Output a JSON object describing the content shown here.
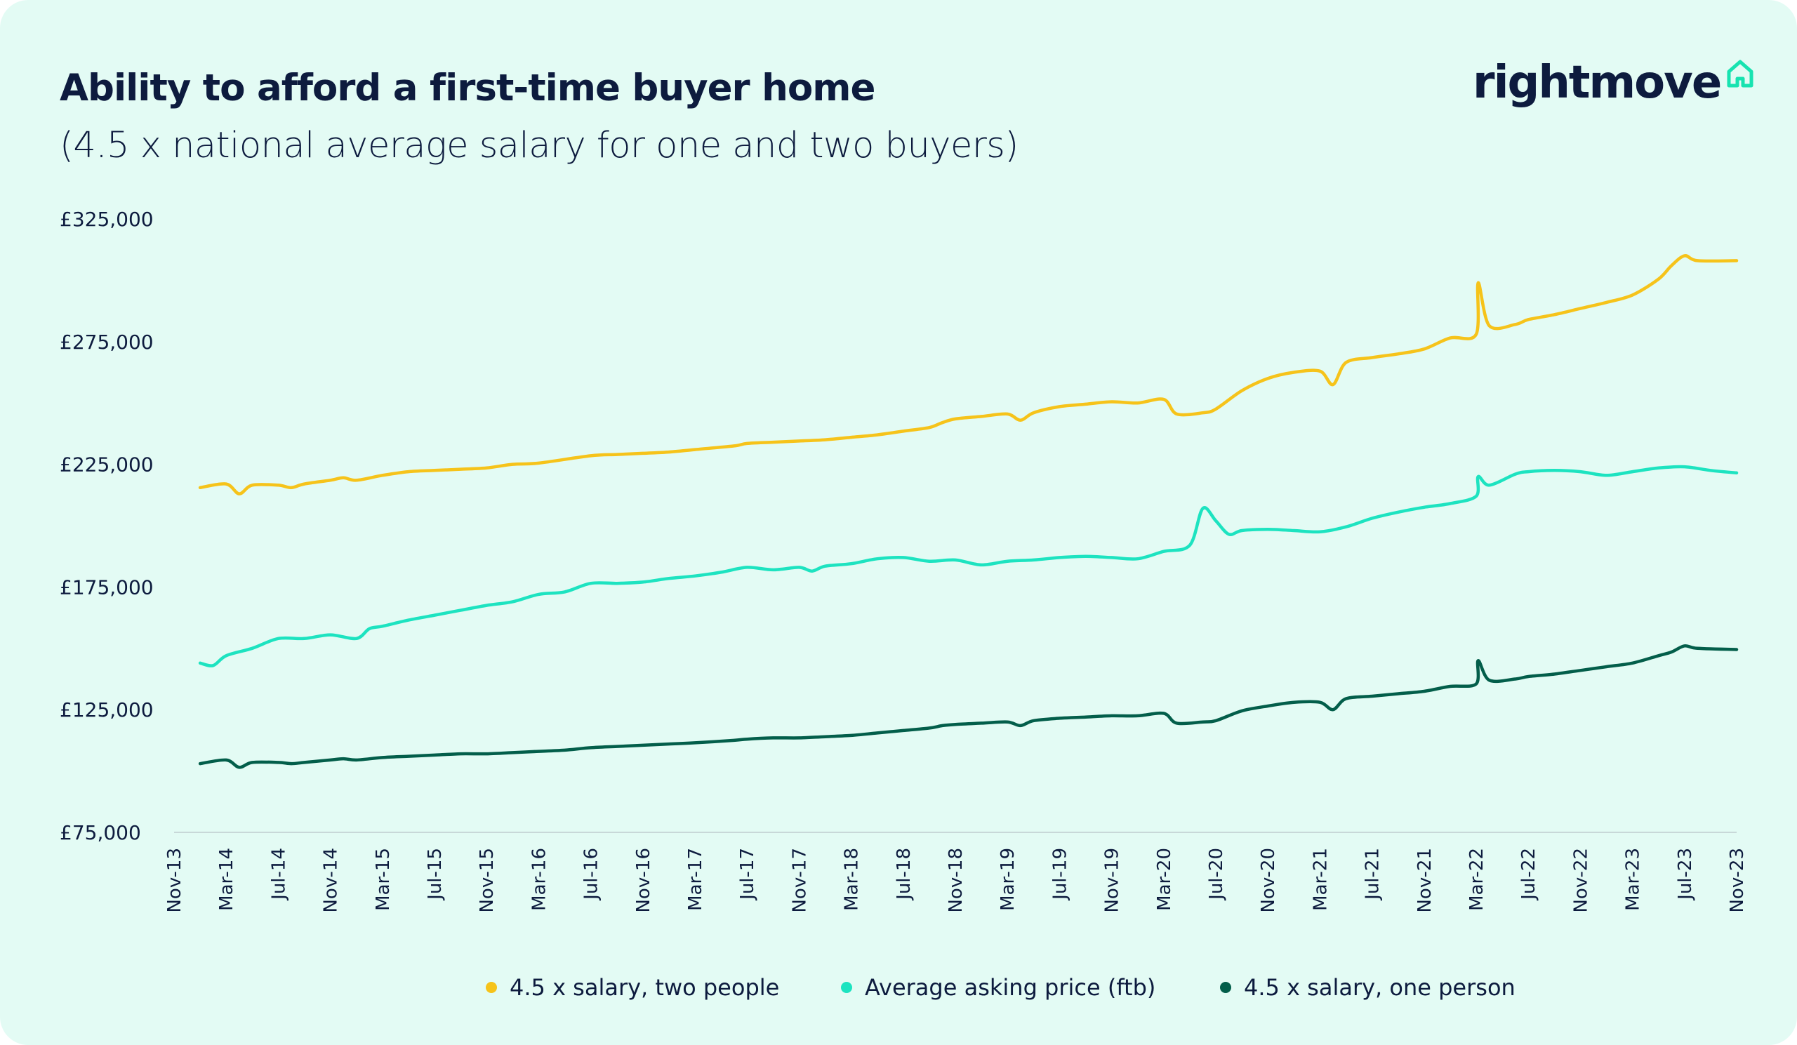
{
  "header": {
    "title": "Ability to afford a first-time buyer home",
    "subtitle": "(4.5 x national average salary for one and two buyers)"
  },
  "logo": {
    "text": "rightmove",
    "icon": "house-icon",
    "icon_color": "#17e3b0"
  },
  "colors": {
    "background": "#e3fbf4",
    "text": "#0d1b3e",
    "two_people": "#f6c31a",
    "asking_price": "#1de3c0",
    "one_person": "#035e4a",
    "axis": "#c8d8d8"
  },
  "chart_data": {
    "type": "line",
    "ylim": [
      75000,
      325000
    ],
    "y_ticks": [
      "£325,000",
      "£275,000",
      "£225,000",
      "£175,000",
      "£125,000",
      "£75,000"
    ],
    "y_tick_values": [
      325000,
      275000,
      225000,
      175000,
      125000,
      75000
    ],
    "x_tick_labels": [
      "Nov-13",
      "Mar-14",
      "Jul-14",
      "Nov-14",
      "Mar-15",
      "Jul-15",
      "Nov-15",
      "Mar-16",
      "Jul-16",
      "Nov-16",
      "Mar-17",
      "Jul-17",
      "Nov-17",
      "Mar-18",
      "Jul-18",
      "Nov-18",
      "Mar-19",
      "Jul-19",
      "Nov-19",
      "Mar-20",
      "Jul-20",
      "Nov-20",
      "Mar-21",
      "Jul-21",
      "Nov-21",
      "Mar-22",
      "Jul-22",
      "Nov-22",
      "Mar-23",
      "Jul-23",
      "Nov-23"
    ],
    "grid": false,
    "legend_position": "bottom",
    "series": [
      {
        "name": "4.5 x salary, two people",
        "color": "#f6c31a",
        "points": [
          [
            "Jan-14",
            215500
          ],
          [
            "Mar-14",
            217000
          ],
          [
            "Apr-14",
            213000
          ],
          [
            "May-14",
            216500
          ],
          [
            "Jul-14",
            216500
          ],
          [
            "Aug-14",
            215500
          ],
          [
            "Sep-14",
            217000
          ],
          [
            "Nov-14",
            218500
          ],
          [
            "Dec-14",
            219500
          ],
          [
            "Jan-15",
            218500
          ],
          [
            "Mar-15",
            220500
          ],
          [
            "May-15",
            222000
          ],
          [
            "Jul-15",
            222500
          ],
          [
            "Sep-15",
            223000
          ],
          [
            "Nov-15",
            223500
          ],
          [
            "Jan-16",
            225000
          ],
          [
            "Mar-16",
            225500
          ],
          [
            "Jul-16",
            228500
          ],
          [
            "Sep-16",
            229000
          ],
          [
            "Nov-16",
            229500
          ],
          [
            "Jan-17",
            230000
          ],
          [
            "Mar-17",
            231000
          ],
          [
            "Jun-17",
            232500
          ],
          [
            "Jul-17",
            233500
          ],
          [
            "Sep-17",
            234000
          ],
          [
            "Nov-17",
            234500
          ],
          [
            "Jan-18",
            235000
          ],
          [
            "Mar-18",
            236000
          ],
          [
            "May-18",
            237000
          ],
          [
            "Jul-18",
            238500
          ],
          [
            "Sep-18",
            240000
          ],
          [
            "Oct-18",
            242000
          ],
          [
            "Nov-18",
            243500
          ],
          [
            "Jan-19",
            244500
          ],
          [
            "Mar-19",
            245500
          ],
          [
            "Apr-19",
            243000
          ],
          [
            "May-19",
            246000
          ],
          [
            "Jul-19",
            248500
          ],
          [
            "Sep-19",
            249500
          ],
          [
            "Nov-19",
            250500
          ],
          [
            "Jan-20",
            250000
          ],
          [
            "Mar-20",
            251500
          ],
          [
            "Apr-20",
            245500
          ],
          [
            "Jun-20",
            246000
          ],
          [
            "Jul-20",
            247500
          ],
          [
            "Sep-20",
            255000
          ],
          [
            "Nov-20",
            260000
          ],
          [
            "Jan-21",
            262500
          ],
          [
            "Mar-21",
            263000
          ],
          [
            "Apr-21",
            257500
          ],
          [
            "May-21",
            266500
          ],
          [
            "Jul-21",
            268500
          ],
          [
            "Sep-21",
            270000
          ],
          [
            "Nov-21",
            272000
          ],
          [
            "Jan-22",
            276500
          ],
          [
            "Mar-22",
            278000
          ],
          [
            "Mar-22",
            299000
          ],
          [
            "Apr-22",
            281500
          ],
          [
            "Jun-22",
            282000
          ],
          [
            "Jul-22",
            284000
          ],
          [
            "Sep-22",
            286000
          ],
          [
            "Nov-22",
            288500
          ],
          [
            "Jan-23",
            291000
          ],
          [
            "Mar-23",
            294000
          ],
          [
            "May-23",
            300500
          ],
          [
            "Jun-23",
            306000
          ],
          [
            "Jul-23",
            310000
          ],
          [
            "Aug-23",
            308000
          ],
          [
            "Nov-23",
            308000
          ]
        ]
      },
      {
        "name": "Average asking price (ftb)",
        "color": "#1de3c0",
        "points": [
          [
            "Jan-14",
            144000
          ],
          [
            "Feb-14",
            143000
          ],
          [
            "Mar-14",
            147000
          ],
          [
            "May-14",
            150000
          ],
          [
            "Jul-14",
            154000
          ],
          [
            "Sep-14",
            154000
          ],
          [
            "Nov-14",
            155500
          ],
          [
            "Jan-15",
            154000
          ],
          [
            "Feb-15",
            158000
          ],
          [
            "Mar-15",
            159000
          ],
          [
            "May-15",
            161500
          ],
          [
            "Jul-15",
            163500
          ],
          [
            "Sep-15",
            165500
          ],
          [
            "Nov-15",
            167500
          ],
          [
            "Jan-16",
            169000
          ],
          [
            "Mar-16",
            172000
          ],
          [
            "May-16",
            173000
          ],
          [
            "Jul-16",
            176500
          ],
          [
            "Sep-16",
            176500
          ],
          [
            "Nov-16",
            177000
          ],
          [
            "Jan-17",
            178500
          ],
          [
            "Mar-17",
            179500
          ],
          [
            "May-17",
            181000
          ],
          [
            "Jul-17",
            183000
          ],
          [
            "Sep-17",
            182000
          ],
          [
            "Nov-17",
            183000
          ],
          [
            "Dec-17",
            181500
          ],
          [
            "Jan-18",
            183500
          ],
          [
            "Mar-18",
            184500
          ],
          [
            "May-18",
            186500
          ],
          [
            "Jul-18",
            187000
          ],
          [
            "Sep-18",
            185500
          ],
          [
            "Nov-18",
            186000
          ],
          [
            "Jan-19",
            184000
          ],
          [
            "Mar-19",
            185500
          ],
          [
            "May-19",
            186000
          ],
          [
            "Jul-19",
            187000
          ],
          [
            "Sep-19",
            187500
          ],
          [
            "Nov-19",
            187000
          ],
          [
            "Jan-20",
            186500
          ],
          [
            "Mar-20",
            189500
          ],
          [
            "May-20",
            192000
          ],
          [
            "Jun-20",
            207000
          ],
          [
            "Jul-20",
            202000
          ],
          [
            "Aug-20",
            196500
          ],
          [
            "Sep-20",
            198000
          ],
          [
            "Nov-20",
            198500
          ],
          [
            "Jan-21",
            198000
          ],
          [
            "Mar-21",
            197500
          ],
          [
            "May-21",
            199500
          ],
          [
            "Jul-21",
            203000
          ],
          [
            "Sep-21",
            205500
          ],
          [
            "Nov-21",
            207500
          ],
          [
            "Jan-22",
            209000
          ],
          [
            "Mar-22",
            212000
          ],
          [
            "Mar-22",
            220000
          ],
          [
            "Apr-22",
            216500
          ],
          [
            "Jun-22",
            221000
          ],
          [
            "Jul-22",
            222000
          ],
          [
            "Sep-22",
            222500
          ],
          [
            "Nov-22",
            222000
          ],
          [
            "Jan-23",
            220500
          ],
          [
            "Mar-23",
            222000
          ],
          [
            "May-23",
            223500
          ],
          [
            "Jul-23",
            224000
          ],
          [
            "Sep-23",
            222500
          ],
          [
            "Nov-23",
            221500
          ]
        ]
      },
      {
        "name": "4.5 x salary, one person",
        "color": "#035e4a",
        "points": [
          [
            "Jan-14",
            103000
          ],
          [
            "Mar-14",
            104500
          ],
          [
            "Apr-14",
            101500
          ],
          [
            "May-14",
            103500
          ],
          [
            "Jul-14",
            103500
          ],
          [
            "Aug-14",
            103000
          ],
          [
            "Sep-14",
            103500
          ],
          [
            "Nov-14",
            104500
          ],
          [
            "Dec-14",
            105000
          ],
          [
            "Jan-15",
            104500
          ],
          [
            "Mar-15",
            105500
          ],
          [
            "May-15",
            106000
          ],
          [
            "Jul-15",
            106500
          ],
          [
            "Sep-15",
            107000
          ],
          [
            "Nov-15",
            107000
          ],
          [
            "Jan-16",
            107500
          ],
          [
            "Mar-16",
            108000
          ],
          [
            "May-16",
            108500
          ],
          [
            "Jul-16",
            109500
          ],
          [
            "Sep-16",
            110000
          ],
          [
            "Nov-16",
            110500
          ],
          [
            "Jan-17",
            111000
          ],
          [
            "Mar-17",
            111500
          ],
          [
            "Jun-17",
            112500
          ],
          [
            "Jul-17",
            113000
          ],
          [
            "Sep-17",
            113500
          ],
          [
            "Nov-17",
            113500
          ],
          [
            "Jan-18",
            114000
          ],
          [
            "Mar-18",
            114500
          ],
          [
            "May-18",
            115500
          ],
          [
            "Jul-18",
            116500
          ],
          [
            "Sep-18",
            117500
          ],
          [
            "Oct-18",
            118500
          ],
          [
            "Nov-18",
            119000
          ],
          [
            "Jan-19",
            119500
          ],
          [
            "Mar-19",
            120000
          ],
          [
            "Apr-19",
            118500
          ],
          [
            "May-19",
            120500
          ],
          [
            "Jul-19",
            121500
          ],
          [
            "Sep-19",
            122000
          ],
          [
            "Nov-19",
            122500
          ],
          [
            "Jan-20",
            122500
          ],
          [
            "Mar-20",
            123500
          ],
          [
            "Apr-20",
            119500
          ],
          [
            "Jun-20",
            120000
          ],
          [
            "Jul-20",
            120500
          ],
          [
            "Sep-20",
            124500
          ],
          [
            "Nov-20",
            126500
          ],
          [
            "Jan-21",
            128000
          ],
          [
            "Mar-21",
            128000
          ],
          [
            "Apr-21",
            125000
          ],
          [
            "May-21",
            129500
          ],
          [
            "Jul-21",
            130500
          ],
          [
            "Sep-21",
            131500
          ],
          [
            "Nov-21",
            132500
          ],
          [
            "Jan-22",
            134500
          ],
          [
            "Mar-22",
            135500
          ],
          [
            "Mar-22",
            145000
          ],
          [
            "Apr-22",
            137000
          ],
          [
            "Jun-22",
            137500
          ],
          [
            "Jul-22",
            138500
          ],
          [
            "Sep-22",
            139500
          ],
          [
            "Nov-22",
            141000
          ],
          [
            "Jan-23",
            142500
          ],
          [
            "Mar-23",
            144000
          ],
          [
            "May-23",
            147000
          ],
          [
            "Jun-23",
            148500
          ],
          [
            "Jul-23",
            151000
          ],
          [
            "Aug-23",
            150000
          ],
          [
            "Nov-23",
            149500
          ]
        ]
      }
    ]
  }
}
